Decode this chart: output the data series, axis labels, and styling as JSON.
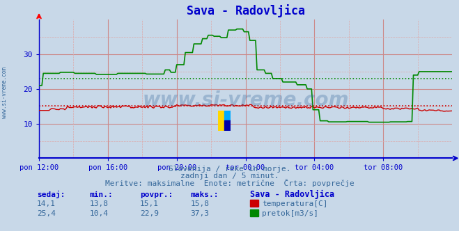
{
  "title": "Sava - Radovljica",
  "background_color": "#c8d8e8",
  "plot_bg_color": "#c8d8e8",
  "x_labels": [
    "pon 12:00",
    "pon 16:00",
    "pon 20:00",
    "tor 00:00",
    "tor 04:00",
    "tor 08:00"
  ],
  "x_ticks": [
    0,
    48,
    96,
    144,
    192,
    240
  ],
  "x_max": 288,
  "y_min": 0,
  "y_max": 40,
  "y_ticks": [
    10,
    20,
    30
  ],
  "temp_color": "#cc0000",
  "flow_color": "#008800",
  "temp_avg": 15.1,
  "flow_avg": 22.9,
  "watermark": "www.si-vreme.com",
  "subtitle1": "Slovenija / reke in morje.",
  "subtitle2": "zadnji dan / 5 minut.",
  "subtitle3": "Meritve: maksimalne  Enote: metrične  Črta: povprečje",
  "legend_title": "Sava - Radovljica",
  "legend_items": [
    {
      "label": "temperatura[C]",
      "color": "#cc0000"
    },
    {
      "label": "pretok[m3/s]",
      "color": "#008800"
    }
  ],
  "stats": {
    "headers": [
      "sedaj:",
      "min.:",
      "povpr.:",
      "maks.:"
    ],
    "temp": [
      14.1,
      13.8,
      15.1,
      15.8
    ],
    "flow": [
      25.4,
      10.4,
      22.9,
      37.3
    ]
  },
  "grid_color": "#cc8888",
  "grid_minor_color": "#ddaaaa",
  "axis_color": "#0000cc",
  "left_label": "www.si-vreme.com",
  "title_color": "#0000cc"
}
